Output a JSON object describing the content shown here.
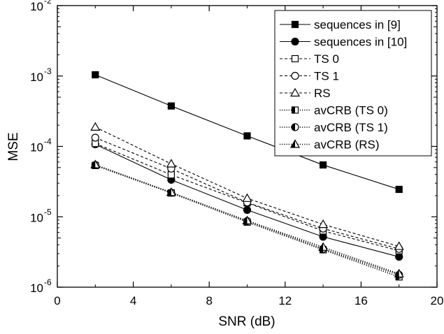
{
  "chart_data": {
    "type": "line",
    "title": "",
    "xlabel": "SNR (dB)",
    "ylabel": "MSE",
    "xlim": [
      0,
      20
    ],
    "ylim": [
      1e-06,
      0.01
    ],
    "yscale": "log",
    "x_ticks": [
      0,
      4,
      8,
      12,
      16,
      20
    ],
    "x_tick_labels": [
      "0",
      "4",
      "8",
      "12",
      "16",
      "20"
    ],
    "y_ticks": [
      1e-06,
      1e-05,
      0.0001,
      0.001,
      0.01
    ],
    "y_tick_labels": [
      {
        "base": "10",
        "exp": "-6"
      },
      {
        "base": "10",
        "exp": "-5"
      },
      {
        "base": "10",
        "exp": "-4"
      },
      {
        "base": "10",
        "exp": "-3"
      },
      {
        "base": "10",
        "exp": "-2"
      }
    ],
    "grid": false,
    "legend_position": "top-right",
    "x": [
      2,
      6,
      10,
      14,
      18
    ],
    "series": [
      {
        "name": "sequences in [9]",
        "values": [
          0.00104,
          0.000375,
          0.000141,
          5.45e-05,
          2.45e-05
        ],
        "line": "solid",
        "marker": "square",
        "fill": "full"
      },
      {
        "name": "sequences in [10]",
        "values": [
          0.000107,
          3.35e-05,
          1.25e-05,
          5.2e-06,
          2.7e-06
        ],
        "line": "solid",
        "marker": "circle",
        "fill": "full"
      },
      {
        "name": "TS 0",
        "values": [
          0.00011,
          3.95e-05,
          1.58e-05,
          6.3e-06,
          3.3e-06
        ],
        "line": "dashed",
        "marker": "square",
        "fill": "none"
      },
      {
        "name": "TS 1",
        "values": [
          0.000133,
          4.83e-05,
          1.6e-05,
          6.8e-06,
          3.5e-06
        ],
        "line": "dashed",
        "marker": "circle",
        "fill": "none"
      },
      {
        "name": "RS",
        "values": [
          0.000188,
          5.65e-05,
          1.83e-05,
          7.8e-06,
          3.8e-06
        ],
        "line": "dashed",
        "marker": "triangle",
        "fill": "none"
      },
      {
        "name": "avCRB (TS 0)",
        "values": [
          5.35e-05,
          2.18e-05,
          8.4e-06,
          3.4e-06,
          1.4e-06
        ],
        "line": "dotted",
        "marker": "square",
        "fill": "half"
      },
      {
        "name": "avCRB (TS 1)",
        "values": [
          5.45e-05,
          2.2e-05,
          8.7e-06,
          3.5e-06,
          1.5e-06
        ],
        "line": "dotted",
        "marker": "circle",
        "fill": "half"
      },
      {
        "name": "avCRB (RS)",
        "values": [
          5.5e-05,
          2.22e-05,
          8.8e-06,
          3.7e-06,
          1.55e-06
        ],
        "line": "dotted",
        "marker": "triangle",
        "fill": "half"
      }
    ]
  }
}
